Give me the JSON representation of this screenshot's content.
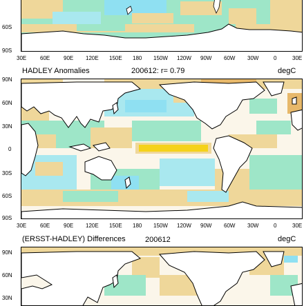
{
  "panels": {
    "top": {
      "lat_labels": [
        "60S",
        "90S"
      ],
      "lon_labels": [
        "30E",
        "60E",
        "90E",
        "120E",
        "150E",
        "180",
        "150W",
        "120W",
        "90W",
        "60W",
        "30W",
        "0",
        "30E"
      ]
    },
    "middle": {
      "title_left": "HADLEY Anomalies",
      "title_center": "200612: r= 0.79",
      "title_right": "degC",
      "lat_labels": [
        "90N",
        "60N",
        "30N",
        "0",
        "30S",
        "60S",
        "90S"
      ],
      "lon_labels": [
        "30E",
        "60E",
        "90E",
        "120E",
        "150E",
        "180",
        "150W",
        "120W",
        "90W",
        "60W",
        "30W",
        "0",
        "30E"
      ]
    },
    "bottom": {
      "title_left": "(ERSST-HADLEY) Differences",
      "title_center": "200612",
      "title_right": "degC",
      "lat_labels": [
        "90N",
        "60N",
        "30N"
      ]
    }
  },
  "colors": {
    "land": "#ffffff",
    "coast": "#000000",
    "weak_neg": "#9ee6c8",
    "neg": "#a9e8ef",
    "strong_neg": "#8fe0f2",
    "weak_pos": "#efd79a",
    "pos": "#e7b86a",
    "strong_pos": "#f5d21a",
    "ocean_neutral": "#fbf6ea"
  }
}
